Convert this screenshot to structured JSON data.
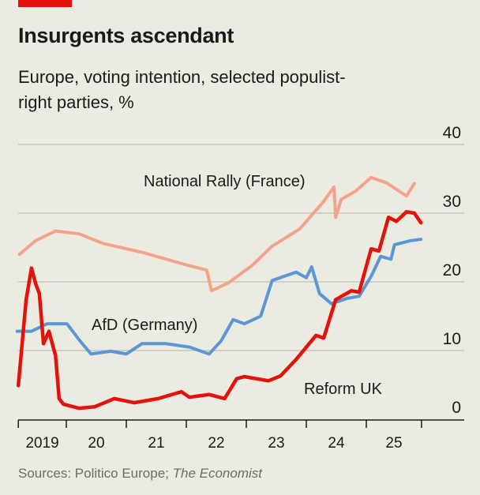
{
  "header": {
    "title": "Insurgents ascendant",
    "subtitle": "Europe, voting intention, selected populist-right parties, %"
  },
  "footer": {
    "source_prefix": "Sources: Politico Europe; ",
    "source_italic": "The Economist"
  },
  "colors": {
    "accent": "#e3120b",
    "national_rally": "#f4a38b",
    "afd": "#5b97d6",
    "reform_uk": "#e3120b"
  },
  "chart_data": {
    "type": "line",
    "title": "Insurgents ascendant",
    "subtitle": "Europe, voting intention, selected populist-right parties, %",
    "ylim": [
      0,
      40
    ],
    "yticks": [
      0,
      10,
      20,
      30,
      40
    ],
    "ytick_labels": [
      "0",
      "10",
      "20",
      "30",
      "40"
    ],
    "xlim": [
      2019.2,
      2025.92
    ],
    "xticks": [
      2020,
      2021,
      2022,
      2023,
      2024,
      2025
    ],
    "xtick_labels": [
      {
        "year": 2019,
        "label": "2019"
      },
      {
        "year": 2020,
        "label": "20"
      },
      {
        "year": 2021,
        "label": "21"
      },
      {
        "year": 2022,
        "label": "22"
      },
      {
        "year": 2023,
        "label": "23"
      },
      {
        "year": 2024,
        "label": "24"
      },
      {
        "year": 2025,
        "label": "25"
      }
    ],
    "grid": true,
    "y_axis_side": "right",
    "series": [
      {
        "name": "National Rally (France)",
        "key": "national_rally",
        "x": [
          2019.22,
          2019.49,
          2019.82,
          2020.21,
          2020.61,
          2021.26,
          2021.99,
          2022.34,
          2022.42,
          2022.71,
          2023.11,
          2023.43,
          2023.89,
          2024.29,
          2024.46,
          2024.49,
          2024.58,
          2024.82,
          2025.08,
          2025.34,
          2025.67,
          2025.8
        ],
        "y": [
          24,
          26,
          27.4,
          27,
          25.6,
          24.3,
          22.5,
          21.7,
          18.7,
          19.9,
          22.5,
          25.2,
          27.7,
          31.7,
          33.8,
          29.4,
          32,
          33.2,
          35.2,
          34.4,
          32.5,
          34.3
        ]
      },
      {
        "name": "AfD (Germany)",
        "key": "afd",
        "x": [
          2019.18,
          2019.42,
          2019.68,
          2020.01,
          2020.21,
          2020.41,
          2020.74,
          2021,
          2021.26,
          2021.66,
          2022.05,
          2022.38,
          2022.58,
          2022.78,
          2022.97,
          2023.24,
          2023.43,
          2023.63,
          2023.83,
          2024,
          2024.09,
          2024.22,
          2024.42,
          2024.68,
          2024.88,
          2025.08,
          2025.24,
          2025.41,
          2025.47,
          2025.74,
          2025.91
        ],
        "y": [
          12.8,
          12.8,
          13.9,
          13.9,
          11.6,
          9.5,
          9.9,
          9.5,
          11,
          11,
          10.5,
          9.5,
          11.4,
          14.5,
          13.9,
          15,
          20.2,
          20.8,
          21.4,
          20.6,
          22.2,
          18.3,
          16.8,
          17.6,
          17.9,
          20.8,
          23.7,
          23.3,
          25.4,
          26,
          26.2
        ]
      },
      {
        "name": "Reform UK",
        "key": "reform_uk",
        "x": [
          2019.2,
          2019.33,
          2019.42,
          2019.49,
          2019.55,
          2019.62,
          2019.71,
          2019.82,
          2019.88,
          2019.95,
          2020.21,
          2020.47,
          2020.8,
          2021.13,
          2021.53,
          2021.92,
          2022.05,
          2022.38,
          2022.64,
          2022.84,
          2022.97,
          2023.37,
          2023.57,
          2023.83,
          2024.16,
          2024.29,
          2024.49,
          2024.75,
          2024.88,
          2025.08,
          2025.21,
          2025.37,
          2025.5,
          2025.67,
          2025.8,
          2025.91
        ],
        "y": [
          4.9,
          17.4,
          22,
          19.7,
          18.3,
          11,
          12.8,
          9.3,
          3,
          2.2,
          1.6,
          1.8,
          3,
          2.4,
          3,
          4,
          3.2,
          3.6,
          3,
          5.9,
          6.2,
          5.6,
          6.3,
          8.7,
          12.2,
          11.8,
          17.4,
          18.7,
          18.5,
          24.8,
          24.5,
          29.4,
          28.8,
          30.2,
          30,
          28.6
        ]
      }
    ],
    "annotations": [
      "National Rally (France)",
      "AfD (Germany)",
      "Reform UK"
    ]
  }
}
